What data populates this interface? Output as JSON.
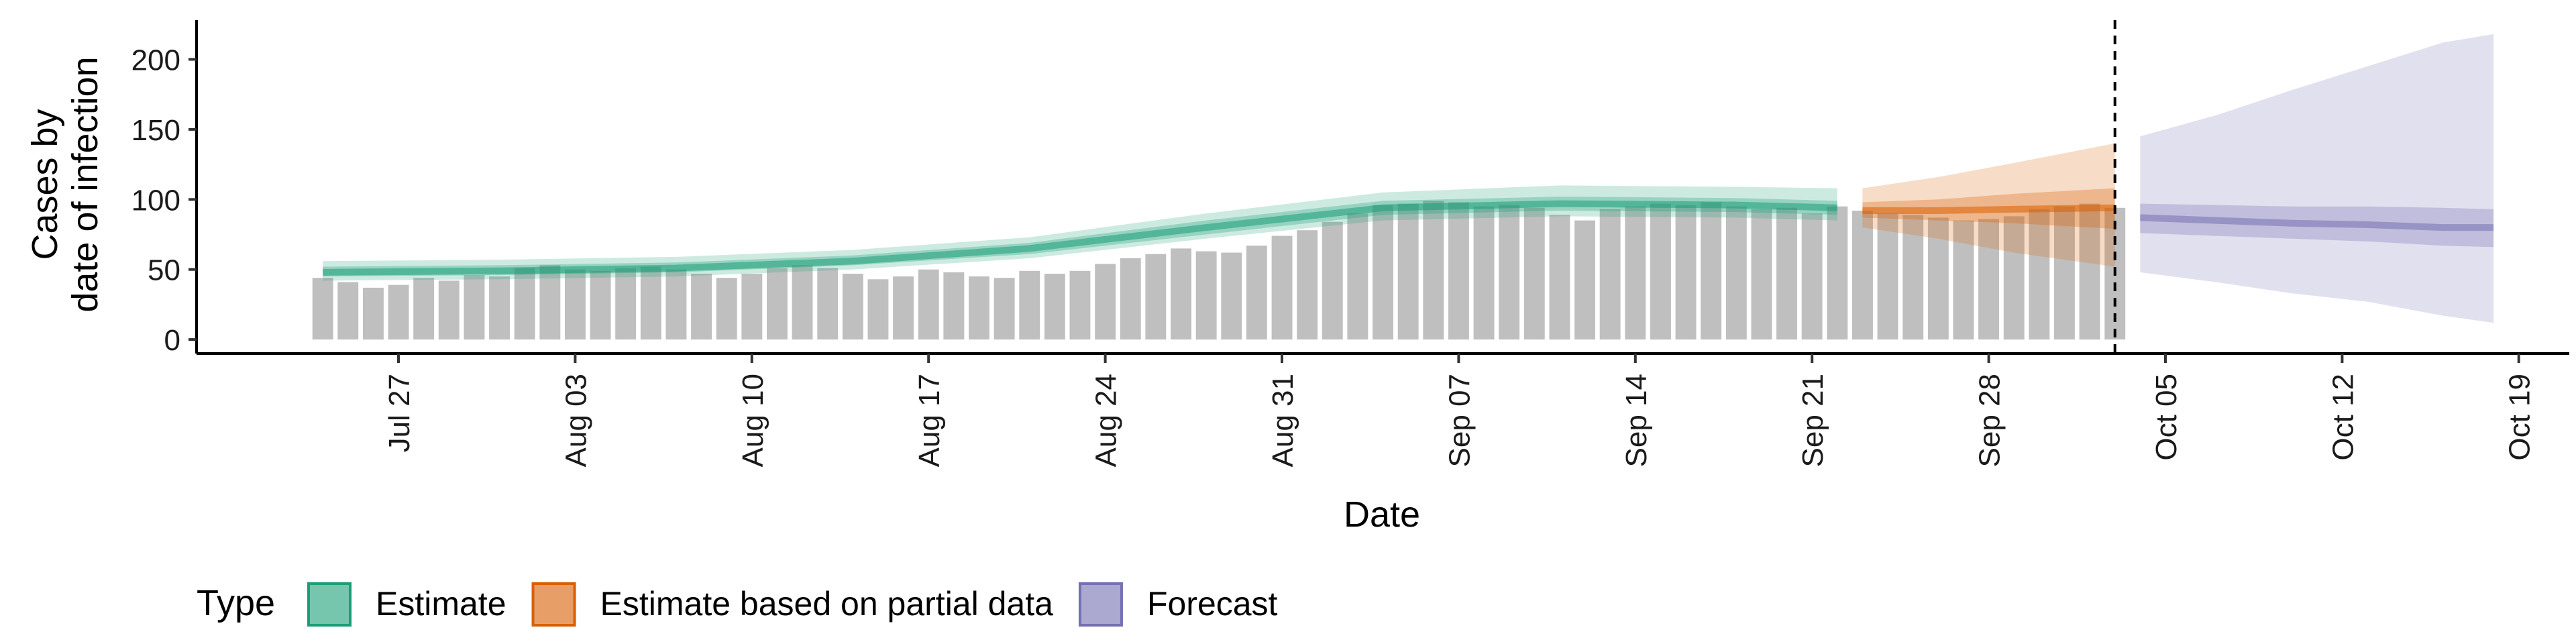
{
  "chart_data": {
    "type": "bar",
    "xlabel": "Date",
    "ylabel_lines": [
      "Cases by",
      "date of infection"
    ],
    "y_ticks": [
      0,
      50,
      100,
      150,
      200
    ],
    "ylim": [
      -10,
      228
    ],
    "x_range": [
      "2021-07-19",
      "2021-10-21"
    ],
    "x_ticks": [
      {
        "date": "2021-07-27",
        "label": "Jul 27"
      },
      {
        "date": "2021-08-03",
        "label": "Aug 03"
      },
      {
        "date": "2021-08-10",
        "label": "Aug 10"
      },
      {
        "date": "2021-08-17",
        "label": "Aug 17"
      },
      {
        "date": "2021-08-24",
        "label": "Aug 24"
      },
      {
        "date": "2021-08-31",
        "label": "Aug 31"
      },
      {
        "date": "2021-09-07",
        "label": "Sep 07"
      },
      {
        "date": "2021-09-14",
        "label": "Sep 14"
      },
      {
        "date": "2021-09-21",
        "label": "Sep 21"
      },
      {
        "date": "2021-09-28",
        "label": "Sep 28"
      },
      {
        "date": "2021-10-05",
        "label": "Oct 05"
      },
      {
        "date": "2021-10-12",
        "label": "Oct 12"
      },
      {
        "date": "2021-10-19",
        "label": "Oct 19"
      }
    ],
    "vline_date": "2021-10-03",
    "bar_dates": [
      "2021-07-24",
      "2021-07-25",
      "2021-07-26",
      "2021-07-27",
      "2021-07-28",
      "2021-07-29",
      "2021-07-30",
      "2021-07-31",
      "2021-08-01",
      "2021-08-02",
      "2021-08-03",
      "2021-08-04",
      "2021-08-05",
      "2021-08-06",
      "2021-08-07",
      "2021-08-08",
      "2021-08-09",
      "2021-08-10",
      "2021-08-11",
      "2021-08-12",
      "2021-08-13",
      "2021-08-14",
      "2021-08-15",
      "2021-08-16",
      "2021-08-17",
      "2021-08-18",
      "2021-08-19",
      "2021-08-20",
      "2021-08-21",
      "2021-08-22",
      "2021-08-23",
      "2021-08-24",
      "2021-08-25",
      "2021-08-26",
      "2021-08-27",
      "2021-08-28",
      "2021-08-29",
      "2021-08-30",
      "2021-08-31",
      "2021-09-01",
      "2021-09-02",
      "2021-09-03",
      "2021-09-04",
      "2021-09-05",
      "2021-09-06",
      "2021-09-07",
      "2021-09-08",
      "2021-09-09",
      "2021-09-10",
      "2021-09-11",
      "2021-09-12",
      "2021-09-13",
      "2021-09-14",
      "2021-09-15",
      "2021-09-16",
      "2021-09-17",
      "2021-09-18",
      "2021-09-19",
      "2021-09-20",
      "2021-09-21",
      "2021-09-22",
      "2021-09-23",
      "2021-09-24",
      "2021-09-25",
      "2021-09-26",
      "2021-09-27",
      "2021-09-28",
      "2021-09-29",
      "2021-09-30",
      "2021-10-01",
      "2021-10-02",
      "2021-10-03"
    ],
    "bar_values": [
      44,
      41,
      37,
      39,
      44,
      42,
      46,
      45,
      51,
      53,
      50,
      49,
      51,
      52,
      50,
      47,
      44,
      47,
      51,
      53,
      51,
      47,
      43,
      45,
      50,
      48,
      45,
      44,
      49,
      47,
      49,
      54,
      58,
      61,
      65,
      63,
      62,
      67,
      74,
      78,
      84,
      90,
      96,
      97,
      99,
      98,
      95,
      96,
      94,
      89,
      85,
      93,
      95,
      97,
      96,
      98,
      95,
      93,
      94,
      90,
      95,
      92,
      90,
      89,
      87,
      85,
      86,
      88,
      93,
      95,
      97,
      94
    ],
    "series": [
      {
        "name": "Estimate",
        "color": "#1b9e77",
        "x": [
          "2021-07-24",
          "2021-07-31",
          "2021-08-07",
          "2021-08-14",
          "2021-08-21",
          "2021-08-28",
          "2021-09-04",
          "2021-09-11",
          "2021-09-18",
          "2021-09-22"
        ],
        "median": [
          48,
          49,
          51,
          56,
          65,
          80,
          94,
          97,
          96,
          94
        ],
        "inner": [
          [
            45,
            52
          ],
          [
            46,
            53
          ],
          [
            48,
            55
          ],
          [
            53,
            60
          ],
          [
            61,
            69
          ],
          [
            75,
            85
          ],
          [
            89,
            99
          ],
          [
            92,
            102
          ],
          [
            91,
            101
          ],
          [
            89,
            99
          ]
        ],
        "outer": [
          [
            42,
            56
          ],
          [
            43,
            57
          ],
          [
            45,
            59
          ],
          [
            50,
            64
          ],
          [
            58,
            73
          ],
          [
            72,
            90
          ],
          [
            85,
            105
          ],
          [
            88,
            110
          ],
          [
            87,
            109
          ],
          [
            85,
            108
          ]
        ]
      },
      {
        "name": "Estimate based on partial data",
        "color": "#d95f02",
        "x": [
          "2021-09-23",
          "2021-09-26",
          "2021-09-29",
          "2021-10-03"
        ],
        "median": [
          92,
          92,
          93,
          94
        ],
        "inner": [
          [
            87,
            98
          ],
          [
            85,
            100
          ],
          [
            83,
            104
          ],
          [
            79,
            108
          ]
        ],
        "outer": [
          [
            80,
            108
          ],
          [
            72,
            116
          ],
          [
            62,
            126
          ],
          [
            52,
            140
          ]
        ]
      },
      {
        "name": "Forecast",
        "color": "#7570b3",
        "x": [
          "2021-10-04",
          "2021-10-07",
          "2021-10-10",
          "2021-10-13",
          "2021-10-16",
          "2021-10-18"
        ],
        "median": [
          87,
          85,
          83,
          82,
          80,
          80
        ],
        "inner": [
          [
            76,
            97
          ],
          [
            74,
            96
          ],
          [
            72,
            95
          ],
          [
            70,
            95
          ],
          [
            67,
            94
          ],
          [
            66,
            93
          ]
        ],
        "outer": [
          [
            48,
            145
          ],
          [
            41,
            160
          ],
          [
            33,
            178
          ],
          [
            27,
            195
          ],
          [
            17,
            212
          ],
          [
            12,
            218
          ]
        ]
      }
    ],
    "legend": {
      "title": "Type",
      "position": "bottom",
      "items": [
        {
          "label": "Estimate",
          "color": "#1b9e77"
        },
        {
          "label": "Estimate based on partial data",
          "color": "#d95f02"
        },
        {
          "label": "Forecast",
          "color": "#7570b3"
        }
      ]
    },
    "grid": false,
    "bar_color": "#bfbfbf"
  }
}
